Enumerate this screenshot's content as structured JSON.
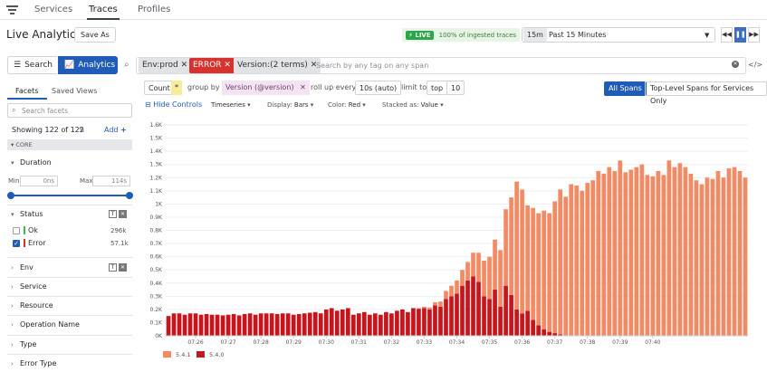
{
  "nav": {
    "menu_icon": "hamburger-icon",
    "tabs": [
      {
        "label": "Services",
        "active": false
      },
      {
        "label": "Traces",
        "active": true
      },
      {
        "label": "Profiles",
        "active": false
      }
    ]
  },
  "header": {
    "title": "Live Analytics",
    "save_as": "Save As",
    "live_badge": "LIVE",
    "live_text": "100% of ingested traces",
    "time_chip": "15m",
    "time_range": "Past 15 Minutes"
  },
  "toolbar": {
    "search_tab": "Search",
    "analytics_tab": "Analytics"
  },
  "query": {
    "pills": [
      {
        "label": "Env:prod",
        "style": "gray"
      },
      {
        "label": "ERROR",
        "style": "red"
      },
      {
        "label": "Version:(2 terms)",
        "style": "gray"
      }
    ],
    "placeholder": "Search by any tag on any span"
  },
  "builder": {
    "count": "Count",
    "star": "*",
    "group_by": "group by",
    "version": "Version (@version)",
    "roll_up": "roll up every",
    "interval": "10s (auto)",
    "limit_to": "limit to",
    "top": "top",
    "top_n": "10",
    "all_spans": "All Spans",
    "top_level": "Top-Level Spans for Services Only"
  },
  "controls": {
    "hide": "Hide Controls",
    "viz": "Timeseries",
    "display_label": "Display:",
    "display_value": "Bars",
    "color_label": "Color:",
    "color_value": "Red",
    "stacked_label": "Stacked as:",
    "stacked_value": "Value"
  },
  "sidebar": {
    "tabs": [
      "Facets",
      "Saved Views"
    ],
    "search_placeholder": "Search facets",
    "showing": "Showing 122 of 122",
    "add": "Add",
    "core": "CORE",
    "duration": {
      "title": "Duration",
      "min_label": "Min",
      "max_label": "Max",
      "min_value": "0ns",
      "max_value": "114s"
    },
    "status": {
      "title": "Status",
      "items": [
        {
          "label": "Ok",
          "count": "296k",
          "checked": false,
          "color": "#3fb950"
        },
        {
          "label": "Error",
          "count": "57.1k",
          "checked": true,
          "color": "#d8322e"
        }
      ]
    },
    "sections": [
      "Env",
      "Service",
      "Resource",
      "Operation Name",
      "Type",
      "Error Type"
    ]
  },
  "colors": {
    "accent": "#1f5cb8",
    "series_541": "#f28b64",
    "series_540": "#c4161c"
  },
  "chart_data": {
    "type": "bar",
    "stacked": true,
    "ylim": [
      0,
      1600
    ],
    "ytick_labels": [
      "0K",
      "0.1K",
      "0.2K",
      "0.3K",
      "0.4K",
      "0.5K",
      "0.6K",
      "0.7K",
      "0.8K",
      "0.9K",
      "1K",
      "1.1K",
      "1.2K",
      "1.3K",
      "1.4K",
      "1.5K",
      "1.6K"
    ],
    "xtick_labels": [
      "07:26",
      "07:27",
      "07:28",
      "07:29",
      "07:30",
      "07:31",
      "07:32",
      "07:33",
      "07:34",
      "07:35",
      "07:36",
      "07:37",
      "07:38",
      "07:39",
      "07:40"
    ],
    "series": [
      {
        "name": "5.4.1",
        "values": [
          0,
          0,
          0,
          0,
          0,
          0,
          0,
          0,
          0,
          0,
          0,
          0,
          0,
          0,
          0,
          0,
          0,
          0,
          0,
          0,
          0,
          0,
          0,
          0,
          0,
          0,
          0,
          0,
          0,
          0,
          0,
          0,
          0,
          0,
          0,
          0,
          0,
          0,
          0,
          0,
          0,
          0,
          0,
          0,
          0,
          0,
          5,
          10,
          15,
          25,
          40,
          60,
          80,
          100,
          120,
          140,
          180,
          220,
          270,
          320,
          380,
          430,
          580,
          740,
          970,
          940,
          800,
          850,
          850,
          900,
          900,
          1000,
          1100,
          1050,
          1150,
          1140,
          1100,
          1160,
          1180,
          1250,
          1230,
          1280,
          1250,
          1330,
          1240,
          1260,
          1280,
          1300,
          1220,
          1210,
          1250,
          1220,
          1330,
          1280,
          1310,
          1280,
          1230,
          1180,
          1150,
          1200,
          1190,
          1250,
          1200,
          1270,
          1280,
          1250,
          1200
        ]
      },
      {
        "name": "5.4.0",
        "values": [
          150,
          170,
          170,
          160,
          170,
          170,
          160,
          165,
          160,
          160,
          155,
          160,
          165,
          155,
          165,
          170,
          160,
          170,
          170,
          170,
          165,
          170,
          170,
          160,
          165,
          170,
          175,
          180,
          170,
          200,
          210,
          190,
          200,
          210,
          160,
          170,
          180,
          160,
          170,
          160,
          180,
          170,
          190,
          200,
          180,
          210,
          205,
          210,
          200,
          230,
          220,
          280,
          300,
          320,
          380,
          420,
          450,
          410,
          300,
          280,
          350,
          220,
          380,
          310,
          200,
          170,
          190,
          120,
          80,
          50,
          30,
          20,
          10,
          5,
          0,
          0,
          0,
          0,
          0,
          0,
          0,
          0,
          0,
          0,
          0,
          0,
          0,
          0,
          0,
          0,
          0,
          0,
          0,
          0,
          0,
          0,
          0,
          0,
          0,
          0,
          0,
          0,
          0,
          0,
          0,
          0,
          0
        ]
      }
    ]
  }
}
